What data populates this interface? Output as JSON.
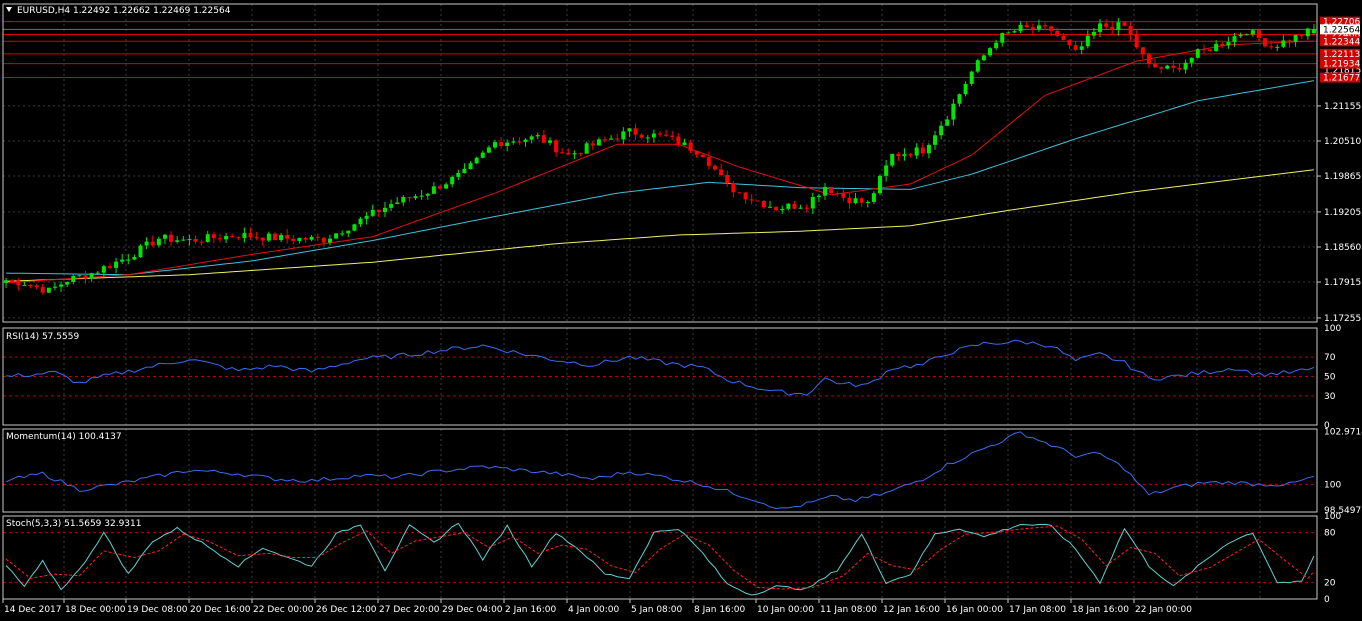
{
  "colors": {
    "background": "#000000",
    "grid": "#3c3c3c",
    "frame": "#c8c8c8",
    "bull": "#00e600",
    "bear": "#ff0000",
    "ma_fast": "#e01010",
    "ma_mid": "#40c0d8",
    "ma_slow": "#f0f060",
    "hline": "#d40000",
    "indicator": "#3a6cf0",
    "signal": "#ff2020",
    "level": "#c00000"
  },
  "header": {
    "title": "EURUSD,H4  1.22492 1.22662 1.22469 1.22564",
    "menu_icon": "triangle-down-icon"
  },
  "chart_data": [
    {
      "type": "candlestick",
      "name": "EURUSD,H4",
      "open": "1.22492",
      "high": "1.22662",
      "low": "1.22469",
      "close": "1.22564",
      "ylim": [
        1.1718,
        1.2303
      ],
      "y_ticks": [
        "1.21155",
        "1.20510",
        "1.19865",
        "1.19205",
        "1.18560",
        "1.17915",
        "1.17255"
      ],
      "y_tick_values": [
        1.21155,
        1.2051,
        1.19865,
        1.19205,
        1.1856,
        1.17915,
        1.17255
      ],
      "current_price": {
        "label": "1.22564",
        "value": 1.22564
      },
      "horizontal_levels": [
        {
          "label": "1.22706",
          "value": 1.22706
        },
        {
          "label": "1.22468",
          "value": 1.22468
        },
        {
          "label": "1.22344",
          "value": 1.22344
        },
        {
          "label": "1.22113",
          "value": 1.22113
        },
        {
          "label": "1.21934",
          "value": 1.21934
        },
        {
          "label": "1.21677",
          "value": 1.21677
        }
      ],
      "extra_axis_labels": [
        {
          "label": "1.21815",
          "value": 1.21815
        }
      ],
      "anchors": [
        [
          0,
          1.1795
        ],
        [
          3,
          1.179
        ],
        [
          7,
          1.1775
        ],
        [
          10,
          1.1795
        ],
        [
          14,
          1.1808
        ],
        [
          20,
          1.1838
        ],
        [
          25,
          1.1872
        ],
        [
          30,
          1.1868
        ],
        [
          38,
          1.1878
        ],
        [
          45,
          1.1872
        ],
        [
          52,
          1.187
        ],
        [
          58,
          1.1905
        ],
        [
          63,
          1.1935
        ],
        [
          69,
          1.1958
        ],
        [
          75,
          1.1992
        ],
        [
          80,
          1.2048
        ],
        [
          87,
          1.2058
        ],
        [
          92,
          1.2025
        ],
        [
          97,
          1.2048
        ],
        [
          102,
          1.2068
        ],
        [
          108,
          1.2058
        ],
        [
          114,
          1.2028
        ],
        [
          118,
          1.1968
        ],
        [
          122,
          1.1945
        ],
        [
          126,
          1.1928
        ],
        [
          131,
          1.1935
        ],
        [
          134,
          1.1968
        ],
        [
          137,
          1.1948
        ],
        [
          141,
          1.1935
        ],
        [
          145,
          1.2025
        ],
        [
          150,
          1.2035
        ],
        [
          154,
          1.2098
        ],
        [
          158,
          1.2178
        ],
        [
          162,
          1.2238
        ],
        [
          166,
          1.2258
        ],
        [
          171,
          1.2255
        ],
        [
          175,
          1.2212
        ],
        [
          179,
          1.2262
        ],
        [
          183,
          1.2262
        ],
        [
          187,
          1.2188
        ],
        [
          191,
          1.2182
        ],
        [
          195,
          1.2212
        ],
        [
          199,
          1.2232
        ],
        [
          203,
          1.2255
        ],
        [
          207,
          1.2225
        ],
        [
          211,
          1.2242
        ],
        [
          214,
          1.2256
        ]
      ],
      "ma_fast_anchors": [
        [
          0,
          1.179
        ],
        [
          20,
          1.1805
        ],
        [
          40,
          1.1842
        ],
        [
          60,
          1.1875
        ],
        [
          80,
          1.1955
        ],
        [
          100,
          1.2045
        ],
        [
          110,
          1.2045
        ],
        [
          120,
          1.2003
        ],
        [
          135,
          1.1952
        ],
        [
          148,
          1.1972
        ],
        [
          158,
          1.2025
        ],
        [
          170,
          1.2135
        ],
        [
          185,
          1.2198
        ],
        [
          200,
          1.2228
        ],
        [
          214,
          1.2235
        ]
      ],
      "ma_mid_anchors": [
        [
          0,
          1.1808
        ],
        [
          20,
          1.1805
        ],
        [
          40,
          1.183
        ],
        [
          60,
          1.1868
        ],
        [
          80,
          1.1912
        ],
        [
          100,
          1.1955
        ],
        [
          115,
          1.1975
        ],
        [
          130,
          1.1965
        ],
        [
          148,
          1.1962
        ],
        [
          158,
          1.199
        ],
        [
          175,
          1.2055
        ],
        [
          195,
          1.2125
        ],
        [
          214,
          1.2162
        ]
      ],
      "ma_slow_anchors": [
        [
          0,
          1.1793
        ],
        [
          30,
          1.1805
        ],
        [
          60,
          1.1828
        ],
        [
          90,
          1.1862
        ],
        [
          110,
          1.1878
        ],
        [
          130,
          1.1885
        ],
        [
          148,
          1.1895
        ],
        [
          165,
          1.1925
        ],
        [
          185,
          1.1958
        ],
        [
          214,
          1.1998
        ]
      ]
    },
    {
      "type": "line",
      "name": "RSI(14)",
      "label": "RSI(14) 57.5559",
      "ylim": [
        0,
        100
      ],
      "y_ticks": [
        "100",
        "70",
        "50",
        "30",
        "0"
      ],
      "y_tick_values": [
        100,
        70,
        50,
        30,
        0
      ],
      "levels": [
        70,
        50,
        30
      ],
      "anchors": [
        [
          0,
          50
        ],
        [
          8,
          54
        ],
        [
          12,
          43
        ],
        [
          16,
          50
        ],
        [
          22,
          58
        ],
        [
          30,
          68
        ],
        [
          38,
          56
        ],
        [
          44,
          61
        ],
        [
          50,
          55
        ],
        [
          58,
          68
        ],
        [
          64,
          71
        ],
        [
          70,
          76
        ],
        [
          78,
          82
        ],
        [
          84,
          74
        ],
        [
          90,
          67
        ],
        [
          96,
          62
        ],
        [
          102,
          70
        ],
        [
          108,
          64
        ],
        [
          114,
          59
        ],
        [
          118,
          47
        ],
        [
          122,
          40
        ],
        [
          126,
          34
        ],
        [
          131,
          32
        ],
        [
          134,
          48
        ],
        [
          137,
          42
        ],
        [
          141,
          41
        ],
        [
          145,
          59
        ],
        [
          150,
          62
        ],
        [
          154,
          74
        ],
        [
          160,
          84
        ],
        [
          166,
          86
        ],
        [
          171,
          82
        ],
        [
          175,
          66
        ],
        [
          179,
          73
        ],
        [
          183,
          64
        ],
        [
          187,
          48
        ],
        [
          191,
          50
        ],
        [
          196,
          54
        ],
        [
          201,
          59
        ],
        [
          205,
          52
        ],
        [
          210,
          54
        ],
        [
          214,
          57.56
        ]
      ]
    },
    {
      "type": "line",
      "name": "Momentum(14)",
      "label": "Momentum(14) 100.4137",
      "ylim": [
        98.45,
        103.1
      ],
      "y_ticks": [
        "102.9714",
        "100",
        "98.5497"
      ],
      "y_tick_values": [
        102.9714,
        100,
        98.5497
      ],
      "levels": [
        100
      ],
      "anchors": [
        [
          0,
          100.2
        ],
        [
          6,
          100.6
        ],
        [
          12,
          99.7
        ],
        [
          18,
          100.0
        ],
        [
          24,
          100.4
        ],
        [
          30,
          100.8
        ],
        [
          38,
          100.6
        ],
        [
          44,
          100.3
        ],
        [
          50,
          100.2
        ],
        [
          58,
          100.5
        ],
        [
          64,
          100.4
        ],
        [
          70,
          100.7
        ],
        [
          78,
          101.0
        ],
        [
          84,
          100.8
        ],
        [
          90,
          100.6
        ],
        [
          96,
          100.3
        ],
        [
          102,
          100.7
        ],
        [
          108,
          100.4
        ],
        [
          114,
          100.0
        ],
        [
          118,
          99.6
        ],
        [
          122,
          99.2
        ],
        [
          127,
          98.6
        ],
        [
          131,
          98.9
        ],
        [
          135,
          99.3
        ],
        [
          139,
          99.1
        ],
        [
          144,
          99.5
        ],
        [
          150,
          100.3
        ],
        [
          154,
          101.1
        ],
        [
          160,
          102.0
        ],
        [
          166,
          102.9
        ],
        [
          171,
          102.2
        ],
        [
          175,
          101.6
        ],
        [
          179,
          101.7
        ],
        [
          183,
          100.9
        ],
        [
          187,
          99.4
        ],
        [
          191,
          99.8
        ],
        [
          196,
          100.1
        ],
        [
          201,
          100.1
        ],
        [
          205,
          100.0
        ],
        [
          210,
          100.0
        ],
        [
          214,
          100.41
        ]
      ]
    },
    {
      "type": "line",
      "name": "Stoch(5,3,3)",
      "label": "Stoch(5,3,3) 51.5659 32.9311",
      "ylim": [
        0,
        100
      ],
      "y_ticks": [
        "100",
        "80",
        "20",
        "0"
      ],
      "y_tick_values": [
        100,
        80,
        20,
        0
      ],
      "levels": [
        80,
        20
      ],
      "main_anchors": [
        [
          0,
          40
        ],
        [
          3,
          15
        ],
        [
          6,
          45
        ],
        [
          9,
          12
        ],
        [
          12,
          35
        ],
        [
          16,
          80
        ],
        [
          20,
          30
        ],
        [
          24,
          70
        ],
        [
          28,
          85
        ],
        [
          32,
          68
        ],
        [
          38,
          40
        ],
        [
          42,
          62
        ],
        [
          46,
          50
        ],
        [
          50,
          40
        ],
        [
          54,
          78
        ],
        [
          58,
          90
        ],
        [
          62,
          35
        ],
        [
          66,
          88
        ],
        [
          70,
          68
        ],
        [
          74,
          92
        ],
        [
          78,
          48
        ],
        [
          82,
          88
        ],
        [
          86,
          40
        ],
        [
          90,
          80
        ],
        [
          94,
          58
        ],
        [
          98,
          30
        ],
        [
          102,
          25
        ],
        [
          106,
          80
        ],
        [
          110,
          85
        ],
        [
          114,
          55
        ],
        [
          118,
          18
        ],
        [
          122,
          5
        ],
        [
          126,
          15
        ],
        [
          131,
          12
        ],
        [
          136,
          35
        ],
        [
          140,
          78
        ],
        [
          144,
          20
        ],
        [
          148,
          30
        ],
        [
          152,
          78
        ],
        [
          156,
          85
        ],
        [
          160,
          75
        ],
        [
          166,
          90
        ],
        [
          171,
          88
        ],
        [
          175,
          60
        ],
        [
          179,
          20
        ],
        [
          183,
          85
        ],
        [
          187,
          40
        ],
        [
          191,
          15
        ],
        [
          196,
          45
        ],
        [
          200,
          68
        ],
        [
          204,
          80
        ],
        [
          208,
          20
        ],
        [
          212,
          20
        ],
        [
          214,
          51.57
        ]
      ],
      "signal_anchors": [
        [
          0,
          48
        ],
        [
          4,
          25
        ],
        [
          8,
          30
        ],
        [
          12,
          28
        ],
        [
          16,
          58
        ],
        [
          21,
          50
        ],
        [
          25,
          58
        ],
        [
          29,
          78
        ],
        [
          33,
          70
        ],
        [
          38,
          52
        ],
        [
          43,
          55
        ],
        [
          47,
          50
        ],
        [
          51,
          50
        ],
        [
          55,
          68
        ],
        [
          59,
          82
        ],
        [
          63,
          55
        ],
        [
          67,
          70
        ],
        [
          71,
          75
        ],
        [
          75,
          80
        ],
        [
          79,
          62
        ],
        [
          83,
          75
        ],
        [
          87,
          55
        ],
        [
          91,
          65
        ],
        [
          95,
          60
        ],
        [
          99,
          40
        ],
        [
          103,
          32
        ],
        [
          107,
          60
        ],
        [
          111,
          78
        ],
        [
          115,
          65
        ],
        [
          119,
          35
        ],
        [
          123,
          14
        ],
        [
          127,
          12
        ],
        [
          132,
          14
        ],
        [
          137,
          28
        ],
        [
          141,
          55
        ],
        [
          145,
          40
        ],
        [
          149,
          35
        ],
        [
          153,
          60
        ],
        [
          157,
          78
        ],
        [
          161,
          80
        ],
        [
          167,
          85
        ],
        [
          172,
          88
        ],
        [
          176,
          72
        ],
        [
          180,
          40
        ],
        [
          184,
          62
        ],
        [
          188,
          55
        ],
        [
          192,
          28
        ],
        [
          197,
          38
        ],
        [
          201,
          55
        ],
        [
          205,
          72
        ],
        [
          209,
          48
        ],
        [
          213,
          25
        ],
        [
          214,
          32.93
        ]
      ]
    }
  ],
  "time_axis": {
    "labels": [
      "14 Dec 2017",
      "18 Dec 00:00",
      "19 Dec 08:00",
      "20 Dec 16:00",
      "22 Dec 00:00",
      "26 Dec 12:00",
      "27 Dec 20:00",
      "29 Dec 04:00",
      "2 Jan 16:00",
      "4 Jan 00:00",
      "5 Jan 08:00",
      "8 Jan 16:00",
      "10 Jan 00:00",
      "11 Jan 08:00",
      "12 Jan 16:00",
      "16 Jan 00:00",
      "17 Jan 08:00",
      "18 Jan 16:00",
      "22 Jan 00:00"
    ]
  }
}
